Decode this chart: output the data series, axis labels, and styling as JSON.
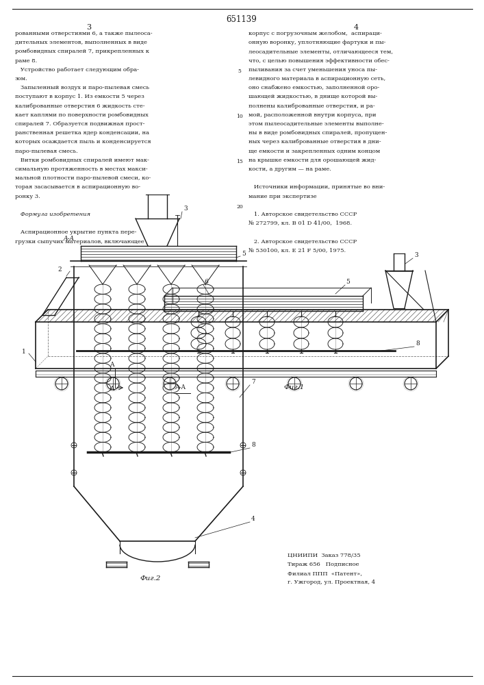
{
  "page_title": "651139",
  "page_col_left": "3",
  "page_col_right": "4",
  "background_color": "#ffffff",
  "text_color": "#1a1a1a",
  "line_color": "#1a1a1a",
  "left_column_text": [
    "рованными отверстиями 6, а также пылеоса-",
    "дительных элементов, выполненных в виде",
    "ромбовидных спиралей 7, прикрепленных к",
    "раме 8.",
    "   Устройство работает следующим обра-",
    "зом.",
    "   Запыленный воздух и паро-пылевая смесь",
    "поступают в корпус 1. Из емкости 5 через",
    "калиброванные отверстия 6 жидкость сте-",
    "кает каплями по поверхности ромбовидных",
    "спиралей 7. Образуется подвижная прост-",
    "ранственная решетка ядер конденсации, на",
    "которых осаждается пыль и конденсируется",
    "паро-пылевая смесь.",
    "   Витки ромбовидных спиралей имеют мак-",
    "симальную протяженность в местах макси-",
    "мальной плотности паро-пылевой смеси, ко-",
    "торая засасывается в аспирационную во-",
    "ронку 3.",
    "",
    "   Формула изобретения",
    "",
    "   Аспирационное укрытие пункта пере-",
    "грузки сыпучих материалов, включающее"
  ],
  "right_column_text": [
    "корпус с погрузочным желобом,  аспираци-",
    "онную воронку, уплотняющие фартуки и пы-",
    "леосадительные элементы, отличающееся тем,",
    "что, с целью повышения эффективности обес-",
    "пыливания за счет уменьшения уноса пы-",
    "левидного материала в аспирационную сеть,",
    "оно снабжено емкостью, заполненной оро-",
    "шающей жидкостью, в днище которой вы-",
    "полнены калиброванные отверстия, и ра-",
    "мой, расположенной внутри корпуса, при",
    "этом пылеосадительные элементы выполне-",
    "ны в виде ромбовидных спиралей, пропущен-",
    "ных через калиброванные отверстия в дни-",
    "ще емкости и закрепленных одним концом",
    "на крышке емкости для орошающей жид-",
    "кости, а другим — на раме.",
    "",
    "   Источники информации, принятые во вни-",
    "мание при экспертизе",
    "",
    "   1. Авторское свидетельство СССР",
    "№ 272799, кл. В 01 D 41/00,  1968.",
    "",
    "   2. Авторское свидетельство СССР",
    "№ 530100, кл. Е 21 F 5/00, 1975."
  ],
  "line_numbers": [
    5,
    10,
    15,
    20
  ],
  "fig1_label": "Фиг.1",
  "fig2_label": "Фиг.2",
  "bottom_text_lines": [
    "ЦНИИПИ  Заказ 778/35",
    "Тираж 656   Подписное",
    "Филиал ППП  «Патент»,",
    "г. Ужгород, ул. Проектная, 4"
  ]
}
